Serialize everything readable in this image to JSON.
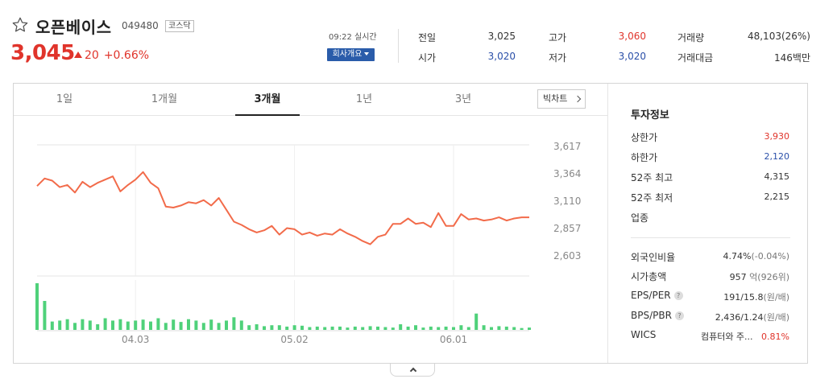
{
  "stock": {
    "name": "오픈베이스",
    "code": "049480",
    "market": "코스닥",
    "price": "3,045",
    "change": "20",
    "change_pct": "+0.66%",
    "realtime": "09:22 실시간",
    "company_info_label": "회사개요"
  },
  "quote": {
    "prev_close_label": "전일",
    "prev_close": "3,025",
    "open_label": "시가",
    "open": "3,020",
    "high_label": "고가",
    "high": "3,060",
    "low_label": "저가",
    "low": "3,020",
    "volume_label": "거래량",
    "volume": "48,103(26%)",
    "amount_label": "거래대금",
    "amount": "146백만"
  },
  "tabs": [
    "1일",
    "1개월",
    "3개월",
    "1년",
    "3년"
  ],
  "active_tab": "3개월",
  "big_chart_label": "빅차트",
  "colors": {
    "up": "#e0342b",
    "down": "#2a4fa8",
    "line": "#f26b4a",
    "volume": "#4fd17a"
  },
  "chart_data": {
    "type": "line",
    "y_ticks": [
      "3,617",
      "3,364",
      "3,110",
      "2,857",
      "2,603"
    ],
    "ylim": [
      2603,
      3617
    ],
    "x_ticks": [
      "04.03",
      "05.02",
      "06.01"
    ],
    "x_tick_index": [
      13,
      34,
      55
    ],
    "series": [
      {
        "values": [
          3250,
          3320,
          3300,
          3240,
          3260,
          3190,
          3290,
          3240,
          3280,
          3310,
          3340,
          3200,
          3260,
          3310,
          3380,
          3280,
          3230,
          3060,
          3050,
          3070,
          3100,
          3090,
          3120,
          3070,
          3140,
          3030,
          2920,
          2890,
          2850,
          2820,
          2840,
          2880,
          2800,
          2860,
          2850,
          2800,
          2820,
          2790,
          2810,
          2800,
          2850,
          2810,
          2780,
          2740,
          2710,
          2780,
          2800,
          2900,
          2900,
          2950,
          2900,
          2910,
          2870,
          3000,
          2880,
          2880,
          2990,
          2940,
          2950,
          2930,
          2940,
          2960,
          2930,
          2950,
          2960,
          2960
        ]
      }
    ],
    "volume_values": [
      100,
      62,
      18,
      20,
      23,
      15,
      23,
      20,
      12,
      25,
      20,
      23,
      18,
      20,
      22,
      18,
      25,
      15,
      22,
      17,
      23,
      20,
      15,
      22,
      15,
      20,
      27,
      20,
      10,
      12,
      8,
      10,
      10,
      7,
      10,
      9,
      6,
      7,
      6,
      7,
      7,
      5,
      7,
      6,
      8,
      7,
      6,
      5,
      12,
      7,
      10,
      5,
      7,
      6,
      7,
      6,
      10,
      6,
      35,
      10,
      6,
      8,
      7,
      6,
      4,
      5
    ]
  },
  "invest": {
    "title": "투자정보",
    "upper_limit_label": "상한가",
    "upper_limit": "3,930",
    "lower_limit_label": "하한가",
    "lower_limit": "2,120",
    "high52_label": "52주 최고",
    "high52": "4,315",
    "low52_label": "52주 최저",
    "low52": "2,215",
    "industry_label": "업종",
    "foreign_label": "외국인비율",
    "foreign": "4.74%",
    "foreign_change": "(-0.04%)",
    "market_cap_label": "시가총액",
    "market_cap": "957",
    "market_cap_unit": "억",
    "market_cap_rank": "(926위)",
    "eps_label": "EPS/PER",
    "eps": "191/15.8",
    "eps_unit": "(원/배)",
    "bps_label": "BPS/PBR",
    "bps": "2,436/1.24",
    "bps_unit": "(원/배)",
    "wics_label": "WICS",
    "wics": "컴퓨터와 주...",
    "wics_pct": "0.81%",
    "help_mark": "?"
  }
}
